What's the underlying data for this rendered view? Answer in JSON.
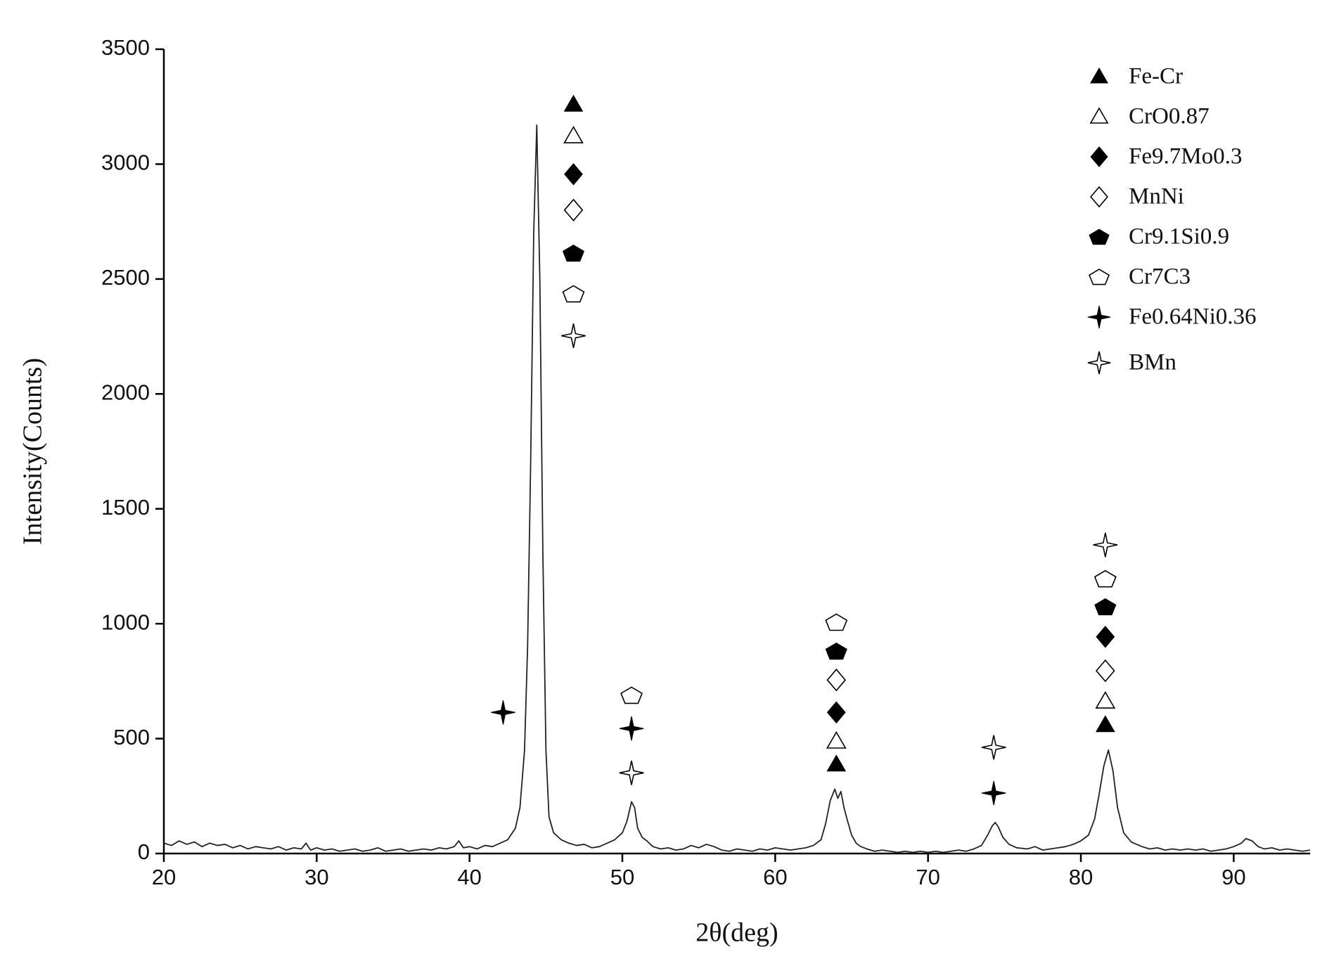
{
  "chart_data": {
    "type": "line",
    "x_label": "2θ(deg)",
    "y_label": "Intensity(Counts)",
    "xlim": [
      20,
      95
    ],
    "ylim": [
      0,
      3500
    ],
    "xticks": [
      20,
      30,
      40,
      50,
      60,
      70,
      80,
      90
    ],
    "yticks": [
      0,
      500,
      1000,
      1500,
      2000,
      2500,
      3000,
      3500
    ],
    "color": "#222222",
    "x": [
      20,
      20.5,
      21,
      21.5,
      22,
      22.5,
      23,
      23.5,
      24,
      24.5,
      25,
      25.5,
      26,
      26.5,
      27,
      27.5,
      28,
      28.5,
      29,
      29.3,
      29.6,
      30,
      30.5,
      31,
      31.5,
      32,
      32.5,
      33,
      33.5,
      34,
      34.5,
      35,
      35.5,
      36,
      36.5,
      37,
      37.5,
      38,
      38.5,
      39,
      39.3,
      39.6,
      40,
      40.5,
      41,
      41.5,
      42,
      42.5,
      43,
      43.3,
      43.6,
      43.8,
      44,
      44.2,
      44.4,
      44.6,
      44.8,
      45,
      45.2,
      45.5,
      46,
      46.5,
      47,
      47.5,
      48,
      48.5,
      49,
      49.5,
      50,
      50.3,
      50.6,
      50.8,
      51,
      51.3,
      51.6,
      52,
      52.5,
      53,
      53.5,
      54,
      54.5,
      55,
      55.5,
      56,
      56.5,
      57,
      57.5,
      58,
      58.5,
      59,
      59.5,
      60,
      60.5,
      61,
      61.5,
      62,
      62.5,
      63,
      63.3,
      63.6,
      63.9,
      64.1,
      64.3,
      64.5,
      64.7,
      65,
      65.3,
      65.6,
      66,
      66.5,
      67,
      67.5,
      68,
      68.5,
      69,
      69.5,
      70,
      70.5,
      71,
      71.5,
      72,
      72.5,
      73,
      73.5,
      73.9,
      74.2,
      74.4,
      74.6,
      74.9,
      75.3,
      75.8,
      76.5,
      77,
      77.5,
      78,
      78.5,
      79,
      79.5,
      80,
      80.5,
      80.9,
      81.2,
      81.5,
      81.8,
      82.1,
      82.4,
      82.8,
      83.3,
      84,
      84.5,
      85,
      85.5,
      86,
      86.5,
      87,
      87.5,
      88,
      88.5,
      89,
      89.5,
      90,
      90.5,
      90.8,
      91.2,
      91.6,
      92,
      92.5,
      93,
      93.5,
      94,
      94.5,
      95
    ],
    "values": [
      45,
      35,
      55,
      40,
      50,
      30,
      45,
      35,
      40,
      25,
      35,
      20,
      30,
      25,
      20,
      30,
      15,
      25,
      20,
      45,
      15,
      25,
      15,
      20,
      10,
      15,
      20,
      10,
      15,
      25,
      10,
      15,
      20,
      10,
      15,
      20,
      15,
      25,
      20,
      30,
      55,
      25,
      30,
      20,
      35,
      30,
      45,
      60,
      110,
      200,
      450,
      900,
      1700,
      2700,
      3170,
      2500,
      1300,
      450,
      160,
      90,
      60,
      45,
      35,
      40,
      25,
      30,
      45,
      60,
      90,
      140,
      225,
      200,
      110,
      70,
      55,
      30,
      20,
      25,
      15,
      20,
      35,
      25,
      40,
      30,
      15,
      10,
      20,
      15,
      10,
      20,
      15,
      25,
      20,
      15,
      20,
      25,
      35,
      60,
      130,
      230,
      280,
      240,
      270,
      200,
      150,
      80,
      45,
      30,
      20,
      10,
      15,
      10,
      5,
      10,
      5,
      10,
      5,
      10,
      5,
      10,
      15,
      10,
      20,
      35,
      80,
      120,
      135,
      115,
      70,
      40,
      25,
      20,
      30,
      15,
      20,
      25,
      30,
      40,
      55,
      80,
      150,
      260,
      380,
      450,
      360,
      200,
      90,
      50,
      30,
      20,
      25,
      15,
      20,
      15,
      20,
      15,
      20,
      10,
      15,
      20,
      30,
      45,
      65,
      55,
      30,
      20,
      25,
      15,
      20,
      15,
      10,
      15
    ],
    "phases": [
      {
        "name": "Fe-Cr",
        "symbol": "triangle",
        "filled": true,
        "x": [
          46.8,
          64.0,
          81.6
        ],
        "y": [
          3259,
          388,
          559
        ]
      },
      {
        "name": "CrO0.87",
        "symbol": "triangle",
        "filled": false,
        "x": [
          46.8,
          64.0,
          81.6
        ],
        "y": [
          3122,
          488,
          662
        ]
      },
      {
        "name": "Fe9.7Mo0.3",
        "symbol": "diamond",
        "filled": true,
        "x": [
          46.8,
          64.0,
          81.6
        ],
        "y": [
          2956,
          614,
          943
        ]
      },
      {
        "name": "MnNi",
        "symbol": "diamond",
        "filled": false,
        "x": [
          46.8,
          64.0,
          81.6
        ],
        "y": [
          2800,
          755,
          795
        ]
      },
      {
        "name": "Cr9.1Si0.9",
        "symbol": "pentagon",
        "filled": true,
        "x": [
          46.8,
          64.0,
          81.6
        ],
        "y": [
          2612,
          880,
          1073
        ]
      },
      {
        "name": "Cr7C3",
        "symbol": "pentagon",
        "filled": false,
        "x": [
          46.8,
          50.6,
          64.0,
          81.6
        ],
        "y": [
          2435,
          688,
          1006,
          1195
        ]
      },
      {
        "name": "Fe0.64Ni0.36",
        "symbol": "star",
        "filled": true,
        "x": [
          42.2,
          50.6,
          74.3
        ],
        "y": [
          614,
          544,
          263
        ]
      },
      {
        "name": "BMn",
        "symbol": "star",
        "filled": false,
        "x": [
          46.8,
          50.6,
          74.3,
          81.6
        ],
        "y": [
          2253,
          351,
          462,
          1343
        ]
      }
    ],
    "marker_color": "#000000"
  }
}
